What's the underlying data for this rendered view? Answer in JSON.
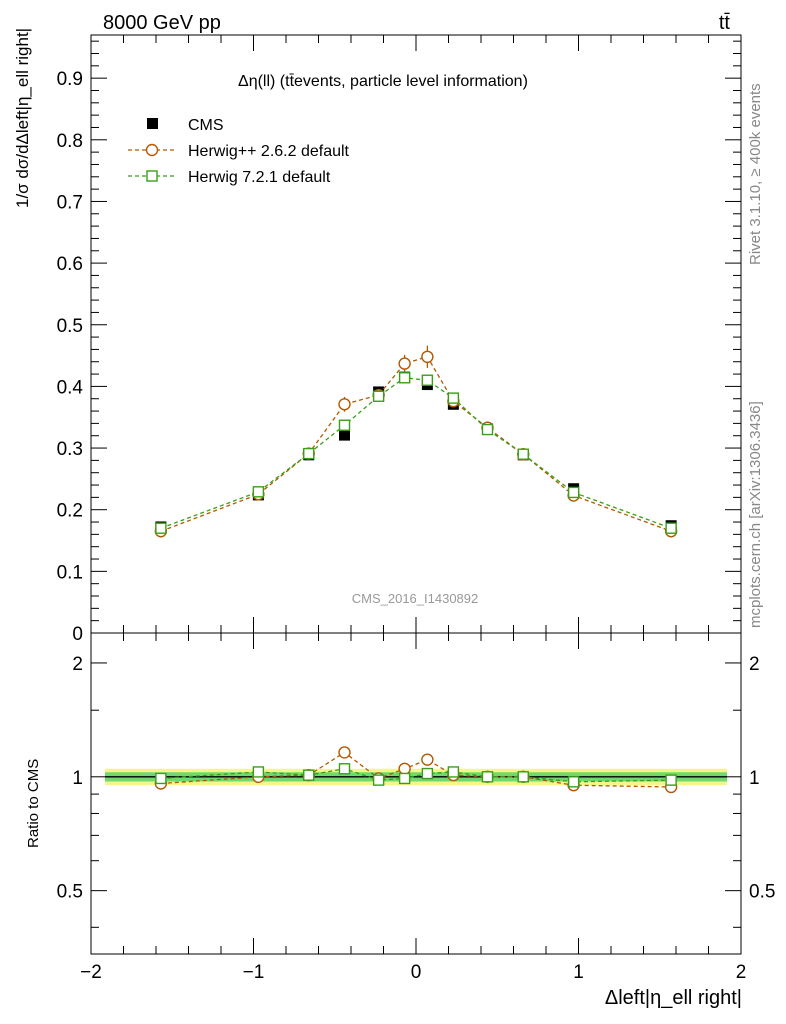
{
  "header": {
    "energy": "8000 GeV pp",
    "process": "tt̄",
    "rivet": "Rivet 3.1.10, ≥ 400k events",
    "source": "mcplots.cern.ch [arXiv:1306.3436]",
    "analysis": "CMS_2016_I1430892"
  },
  "chart_data": [
    {
      "type": "scatter",
      "title": "Δη(ll) (tt̄events, particle level information)",
      "xlabel": "Δleft|η_ell right|",
      "ylabel": "1/σ dσ/dΔleft|η_ell right|",
      "xlim": [
        -2,
        2
      ],
      "ylim": [
        0,
        0.97
      ],
      "legend_position": "top-left",
      "y_ticks": [
        "0",
        "0.1",
        "0.2",
        "0.3",
        "0.4",
        "0.5",
        "0.6",
        "0.7",
        "0.8",
        "0.9"
      ],
      "x": [
        -1.57,
        -0.97,
        -0.66,
        -0.44,
        -0.23,
        -0.07,
        0.07,
        0.23,
        0.44,
        0.66,
        0.97,
        1.57
      ],
      "series": [
        {
          "name": "CMS",
          "color": "#000000",
          "marker": "filled-square",
          "values": [
            0.172,
            0.224,
            0.289,
            0.321,
            0.391,
            0.415,
            0.403,
            0.371,
            0.331,
            0.289,
            0.234,
            0.174
          ]
        },
        {
          "name": "Herwig++ 2.6.2 default",
          "color": "#b35900",
          "marker": "open-circle",
          "values": [
            0.165,
            0.225,
            0.291,
            0.371,
            0.386,
            0.437,
            0.448,
            0.376,
            0.333,
            0.29,
            0.223,
            0.165
          ],
          "errors": [
            0.004,
            0.005,
            0.006,
            0.012,
            0.01,
            0.014,
            0.018,
            0.008,
            0.01,
            0.006,
            0.005,
            0.004
          ]
        },
        {
          "name": "Herwig 7.2.1 default",
          "color": "#3a9e1a",
          "marker": "open-square",
          "values": [
            0.17,
            0.229,
            0.291,
            0.337,
            0.384,
            0.414,
            0.41,
            0.381,
            0.33,
            0.29,
            0.228,
            0.17
          ]
        }
      ]
    },
    {
      "type": "scatter",
      "ylabel": "Ratio to CMS",
      "xlim": [
        -2,
        2
      ],
      "ylim": [
        0.34,
        2.4
      ],
      "y_scale": "log",
      "x_ticks": [
        "−2",
        "−1",
        "0",
        "1",
        "2"
      ],
      "y_ticks": [
        "0.5",
        "1",
        "2"
      ],
      "band_color_inner": "#6fd96f",
      "band_color_outer": "#f5f58a",
      "x": [
        -1.57,
        -0.97,
        -0.66,
        -0.44,
        -0.23,
        -0.07,
        0.07,
        0.23,
        0.44,
        0.66,
        0.97,
        1.57
      ],
      "series": [
        {
          "name": "Herwig++ 2.6.2 default",
          "color": "#b35900",
          "values": [
            0.96,
            1.0,
            1.01,
            1.16,
            0.99,
            1.05,
            1.11,
            1.01,
            1.0,
            1.0,
            0.95,
            0.94
          ]
        },
        {
          "name": "Herwig 7.2.1 default",
          "color": "#3a9e1a",
          "values": [
            0.99,
            1.03,
            1.01,
            1.05,
            0.98,
            0.99,
            1.02,
            1.03,
            1.0,
            1.0,
            0.97,
            0.98
          ]
        }
      ]
    }
  ]
}
